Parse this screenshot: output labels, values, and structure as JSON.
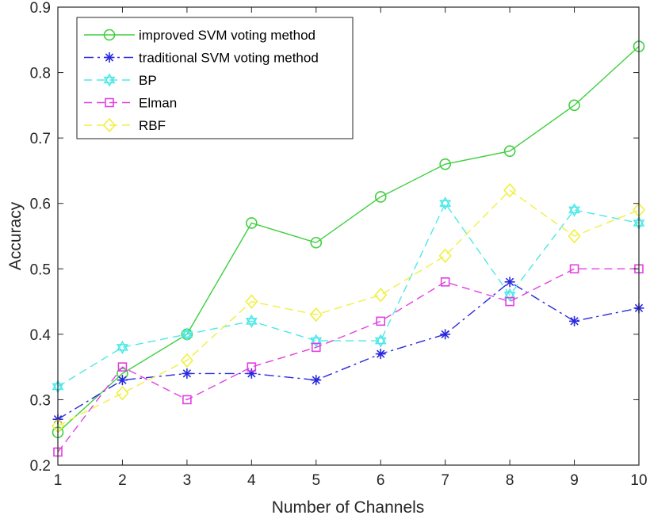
{
  "chart_data": {
    "type": "line",
    "title": "",
    "xlabel": "Number of Channels",
    "ylabel": "Accuracy",
    "x": [
      1,
      2,
      3,
      4,
      5,
      6,
      7,
      8,
      9,
      10
    ],
    "xlim": [
      1,
      10
    ],
    "ylim": [
      0.2,
      0.9
    ],
    "xticks": [
      "1",
      "2",
      "3",
      "4",
      "5",
      "6",
      "7",
      "8",
      "9",
      "10"
    ],
    "yticks": [
      {
        "value": 0.2,
        "label": "0.2"
      },
      {
        "value": 0.3,
        "label": "0.3"
      },
      {
        "value": 0.4,
        "label": "0.4"
      },
      {
        "value": 0.5,
        "label": "0.5"
      },
      {
        "value": 0.6,
        "label": "0.6"
      },
      {
        "value": 0.7,
        "label": "0.7"
      },
      {
        "value": 0.8,
        "label": "0.8"
      },
      {
        "value": 0.9,
        "label": "0.9"
      }
    ],
    "grid": false,
    "legend_position": "top-left",
    "series": [
      {
        "name": "improved SVM voting method",
        "color": "#3fcf3f",
        "dash": "solid",
        "marker": "circle",
        "values": [
          0.25,
          0.34,
          0.4,
          0.57,
          0.54,
          0.61,
          0.66,
          0.68,
          0.75,
          0.84
        ]
      },
      {
        "name": "traditional SVM voting method",
        "color": "#2929e0",
        "dash": "dashdot",
        "marker": "asterisk",
        "values": [
          0.27,
          0.33,
          0.34,
          0.34,
          0.33,
          0.37,
          0.4,
          0.48,
          0.42,
          0.44
        ]
      },
      {
        "name": "BP",
        "color": "#4ee8e8",
        "dash": "dashed",
        "marker": "hexagram",
        "values": [
          0.32,
          0.38,
          0.4,
          0.42,
          0.39,
          0.39,
          0.6,
          0.46,
          0.59,
          0.57
        ]
      },
      {
        "name": "Elman",
        "color": "#e040e0",
        "dash": "dashed",
        "marker": "square",
        "values": [
          0.22,
          0.35,
          0.3,
          0.35,
          0.38,
          0.42,
          0.48,
          0.45,
          0.5,
          0.5
        ]
      },
      {
        "name": "RBF",
        "color": "#f0f040",
        "dash": "dashed",
        "marker": "diamond",
        "values": [
          0.26,
          0.31,
          0.36,
          0.45,
          0.43,
          0.46,
          0.52,
          0.62,
          0.55,
          0.59
        ]
      }
    ]
  }
}
